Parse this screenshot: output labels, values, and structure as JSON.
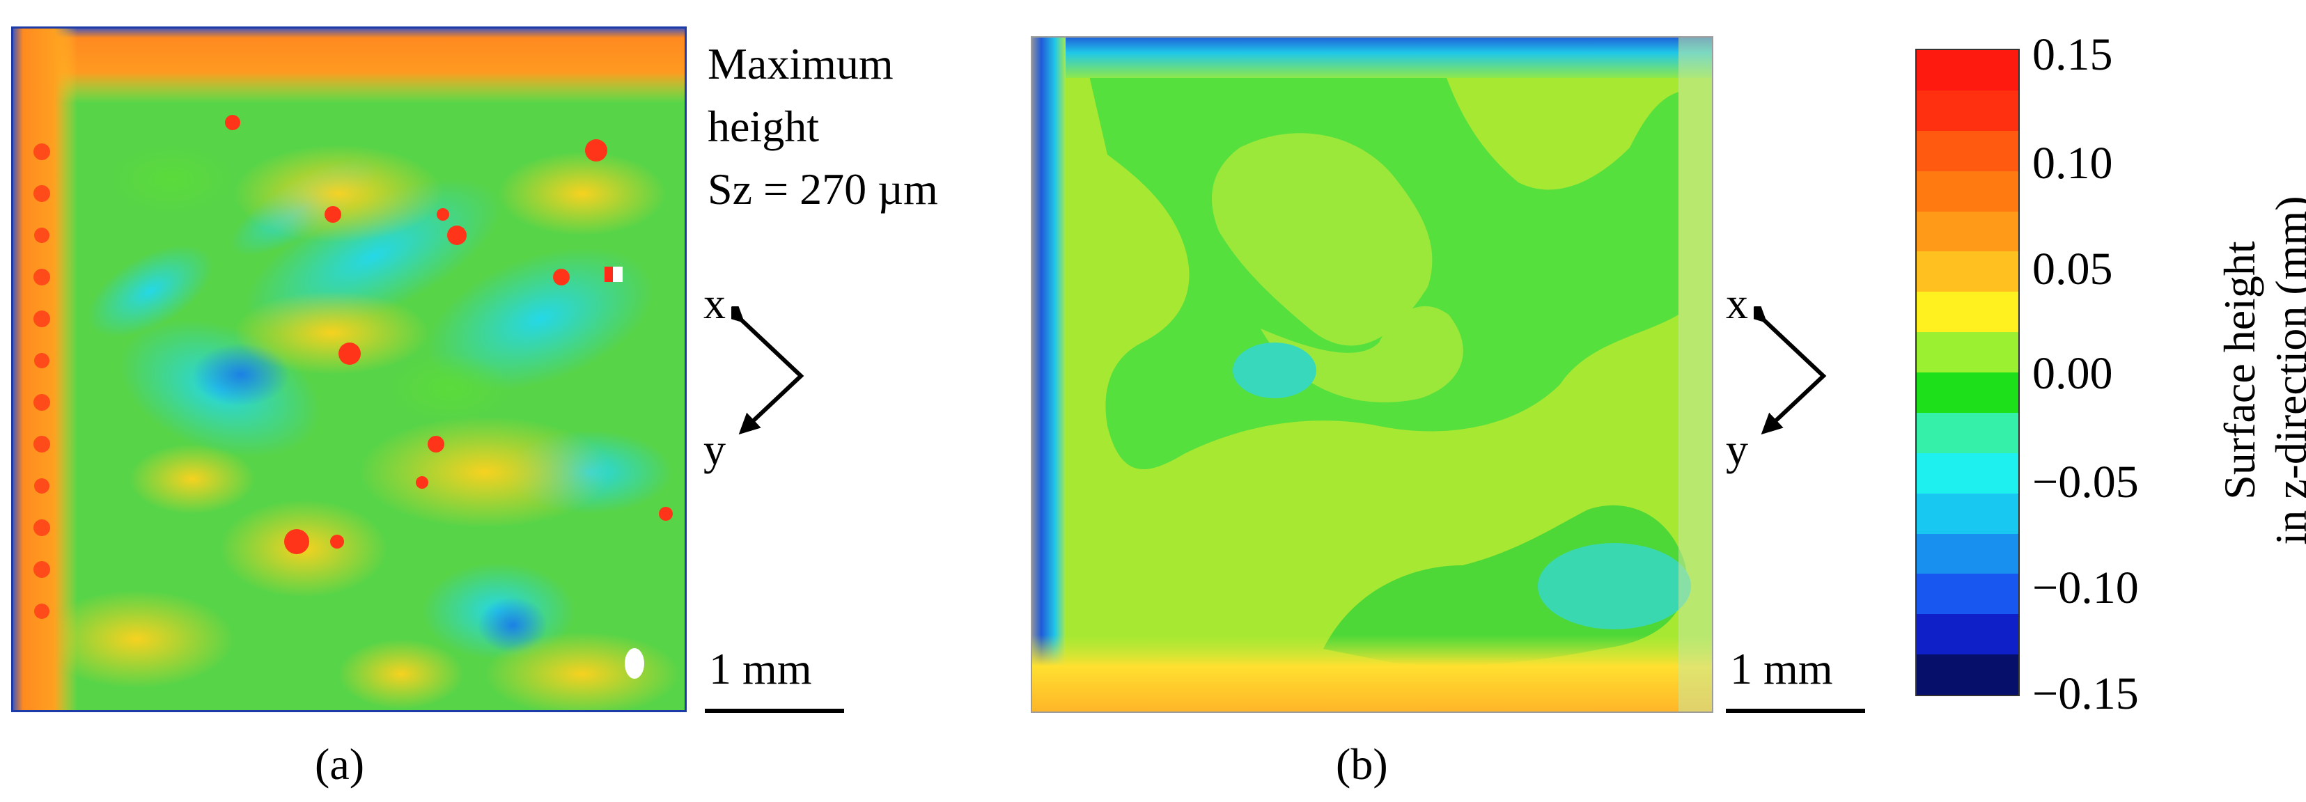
{
  "panel_a": {
    "annotation_lines": [
      "Maximum",
      "height",
      "Sz = 270 µm"
    ],
    "axis_x": "x",
    "axis_y": "y",
    "scalebar": "1 mm",
    "caption": "(a)"
  },
  "panel_b": {
    "axis_x": "x",
    "axis_y": "y",
    "scalebar": "1 mm",
    "caption": "(b)"
  },
  "colorbar": {
    "title_lines": [
      "Surface height",
      "in z-direction (mm)"
    ],
    "ticks": [
      "0.15",
      "0.10",
      "0.05",
      "0.00",
      "−0.05",
      "−0.10",
      "−0.15"
    ],
    "colors": [
      "#ff1a10",
      "#ff3010",
      "#ff5a10",
      "#ff7a10",
      "#ff9a18",
      "#ffc020",
      "#fff020",
      "#9cf032",
      "#1ee01a",
      "#34f0a8",
      "#1ef0f0",
      "#18c8f0",
      "#1890f0",
      "#1858f0",
      "#1020c8",
      "#06106a"
    ]
  }
}
